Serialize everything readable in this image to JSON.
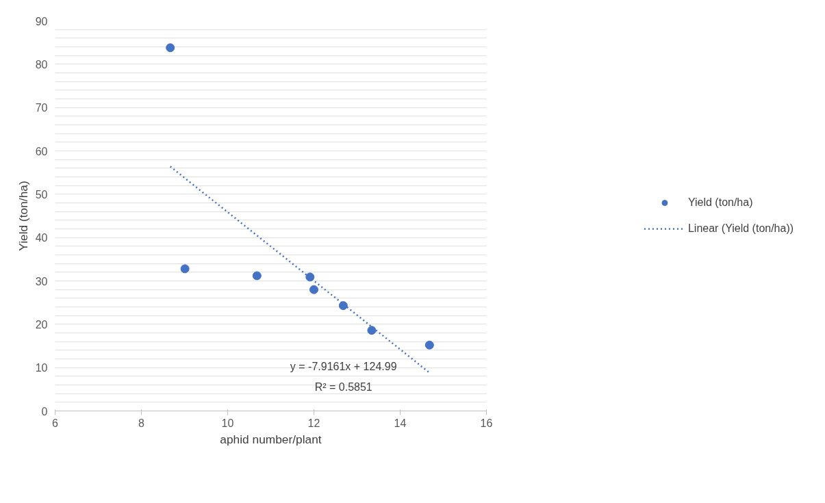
{
  "chart_data": {
    "type": "scatter",
    "xlabel": "aphid number/plant",
    "ylabel": "Yield (ton/ha)",
    "xlim": [
      6,
      16
    ],
    "xticks": [
      6,
      8,
      10,
      12,
      14,
      16
    ],
    "ylim": [
      0,
      90
    ],
    "yticks": [
      0,
      {
        "value": 2,
        "label": null
      },
      {
        "value": 4,
        "label": null
      },
      {
        "value": 6,
        "label": null
      },
      {
        "value": 8,
        "label": null
      },
      10,
      {
        "value": 12,
        "label": null
      },
      {
        "value": 14,
        "label": null
      },
      {
        "value": 16,
        "label": null
      },
      {
        "value": 18,
        "label": null
      },
      20,
      {
        "value": 22,
        "label": null
      },
      {
        "value": 24,
        "label": null
      },
      {
        "value": 26,
        "label": null
      },
      {
        "value": 28,
        "label": null
      },
      30,
      {
        "value": 32,
        "label": null
      },
      {
        "value": 34,
        "label": null
      },
      {
        "value": 36,
        "label": null
      },
      {
        "value": 38,
        "label": null
      },
      40,
      {
        "value": 42,
        "label": null
      },
      {
        "value": 44,
        "label": null
      },
      {
        "value": 46,
        "label": null
      },
      {
        "value": 48,
        "label": null
      },
      50,
      {
        "value": 52,
        "label": null
      },
      {
        "value": 54,
        "label": null
      },
      {
        "value": 56,
        "label": null
      },
      {
        "value": 58,
        "label": null
      },
      60,
      {
        "value": 62,
        "label": null
      },
      {
        "value": 64,
        "label": null
      },
      {
        "value": 66,
        "label": null
      },
      {
        "value": 68,
        "label": null
      },
      70,
      {
        "value": 72,
        "label": null
      },
      {
        "value": 74,
        "label": null
      },
      {
        "value": 76,
        "label": null
      },
      {
        "value": 78,
        "label": null
      },
      80,
      {
        "value": 82,
        "label": null
      },
      {
        "value": 84,
        "label": null
      },
      {
        "value": 86,
        "label": null
      },
      {
        "value": 88,
        "label": null
      },
      90
    ],
    "grid": "y",
    "legend": "right",
    "series": [
      {
        "name": "Yield (ton/ha)",
        "marker": "circle",
        "color": "#4472c4",
        "x": [
          8.67,
          9.01,
          10.68,
          11.91,
          12.0,
          12.68,
          13.34,
          14.68
        ],
        "values": [
          83.8,
          32.8,
          31.2,
          30.9,
          28.0,
          24.3,
          18.6,
          15.2
        ]
      },
      {
        "name": "Linear (Yield (ton/ha))",
        "type": "line",
        "marker": "none",
        "line_style": "dotted",
        "color": "#4472c4",
        "x": [
          8.67,
          14.67
        ],
        "values": [
          56.4,
          8.9
        ]
      }
    ],
    "annotations": [
      "y = -7.9161x + 124.99",
      "R² = 0.5851"
    ]
  }
}
